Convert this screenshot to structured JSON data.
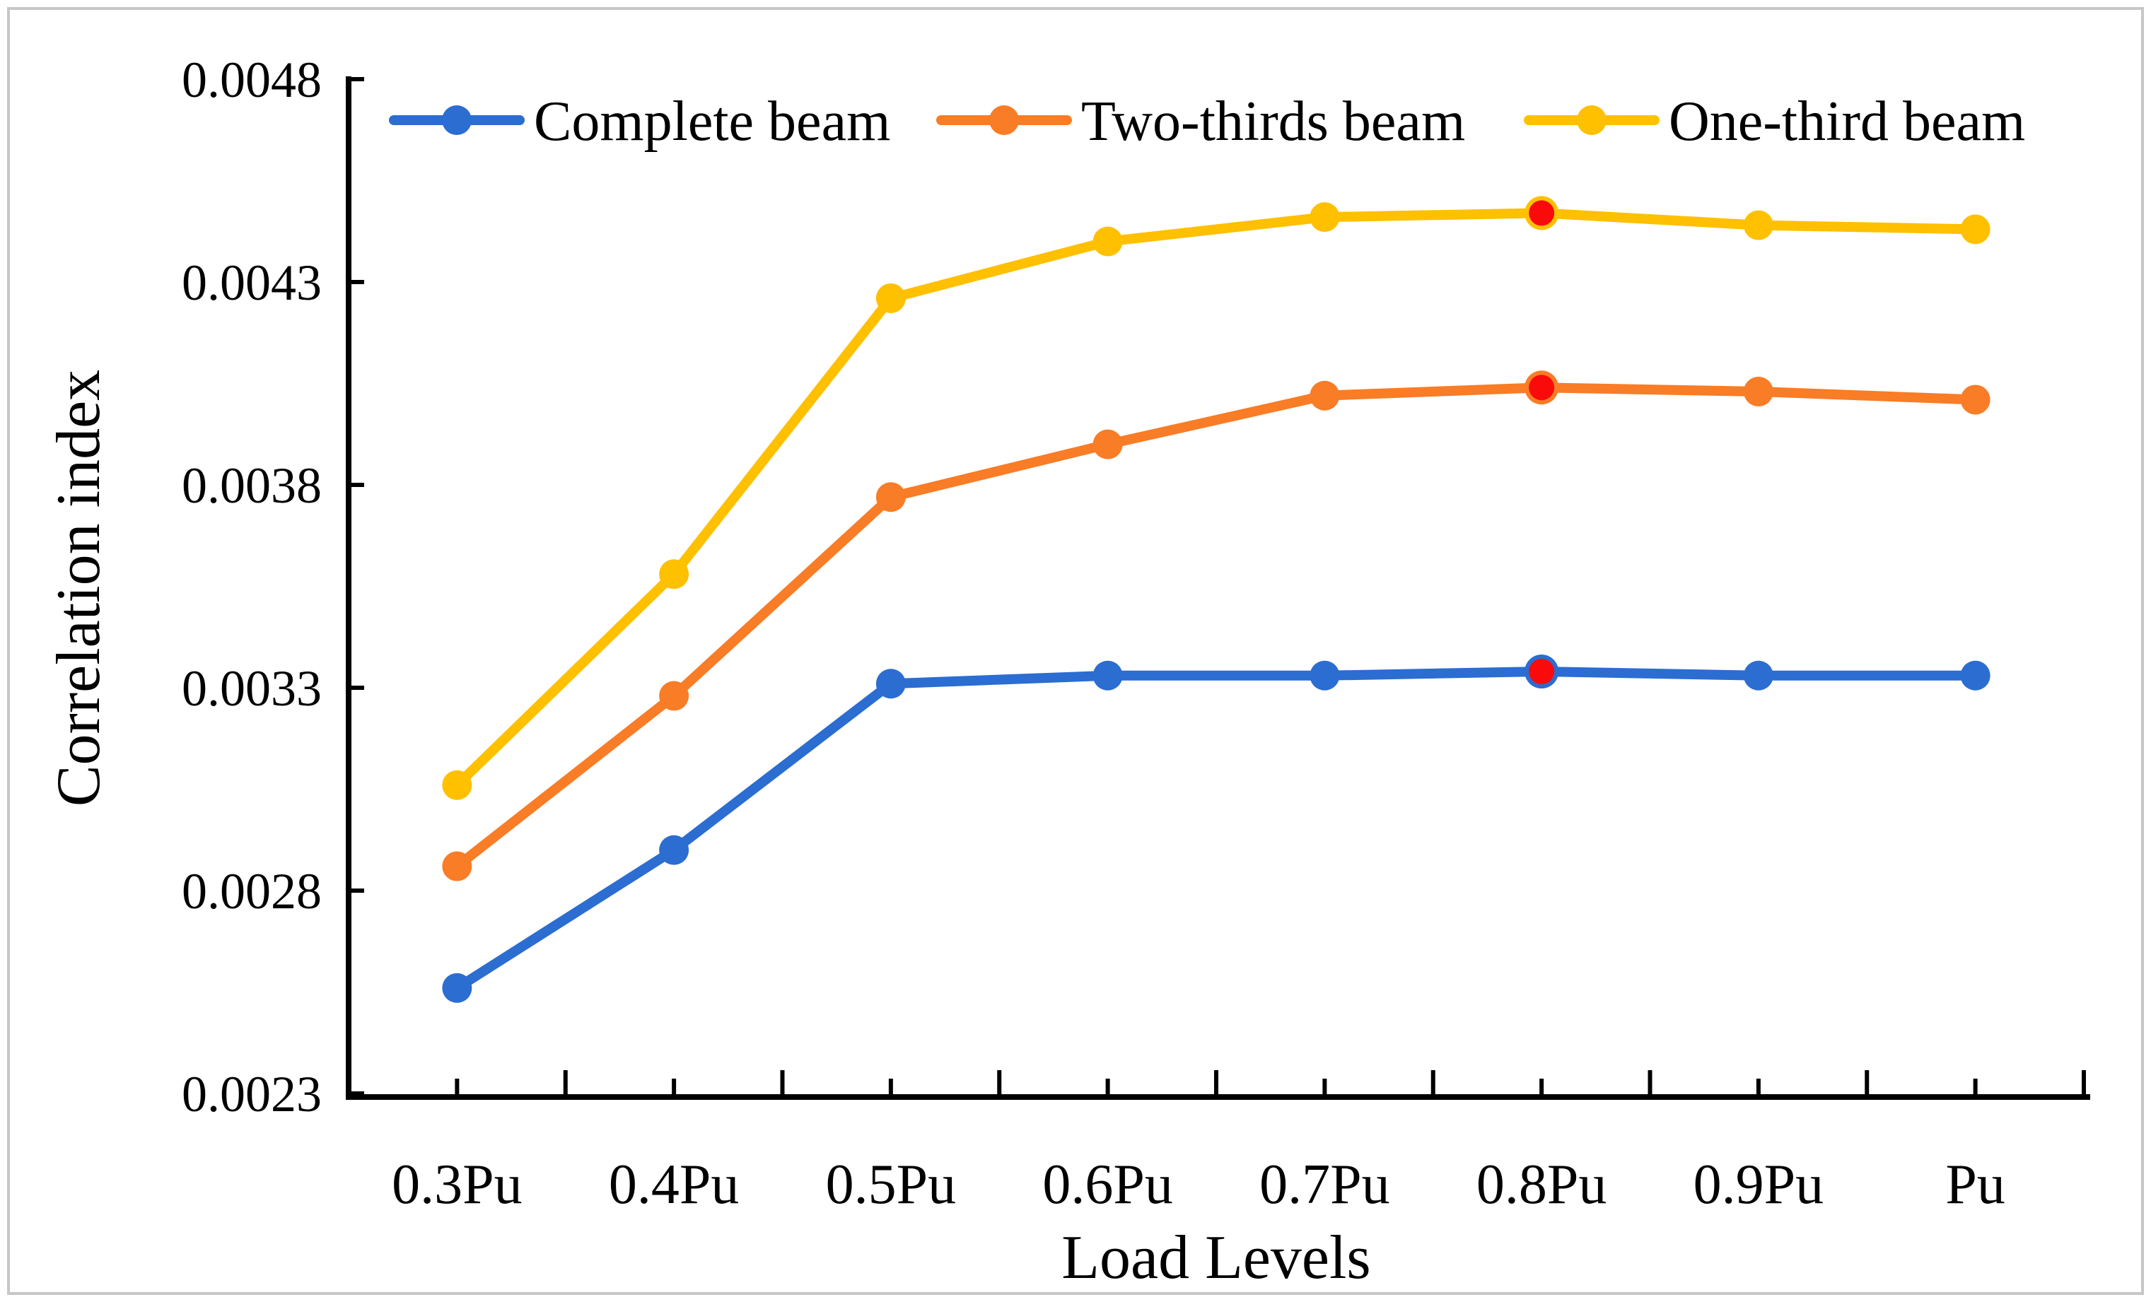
{
  "figure": {
    "background_color": "#ffffff",
    "border_color": "#c7c7c7"
  },
  "chart_data": {
    "type": "line",
    "title": "",
    "xlabel": "Load Levels",
    "ylabel": "Correlation index",
    "categories": [
      "0.3Pu",
      "0.4Pu",
      "0.5Pu",
      "0.6Pu",
      "0.7Pu",
      "0.8Pu",
      "0.9Pu",
      "Pu"
    ],
    "y_ticks": [
      "0.0048",
      "0.0043",
      "0.0038",
      "0.0033",
      "0.0028",
      "0.0023"
    ],
    "ylim": [
      0.0023,
      0.0048
    ],
    "y_tick_step": 0.0005,
    "grid": false,
    "legend_position": "top",
    "axis_color": "#000000",
    "series": [
      {
        "name": "Complete beam",
        "color": "#2b6dd1",
        "values": [
          0.00256,
          0.0029,
          0.00331,
          0.00333,
          0.00333,
          0.00334,
          0.00333,
          0.00333
        ]
      },
      {
        "name": "Two-thirds beam",
        "color": "#f97c26",
        "values": [
          0.00286,
          0.00328,
          0.00377,
          0.0039,
          0.00402,
          0.00404,
          0.00403,
          0.00401
        ]
      },
      {
        "name": "One-third beam",
        "color": "#ffc000",
        "values": [
          0.00306,
          0.00358,
          0.00426,
          0.0044,
          0.00446,
          0.00447,
          0.00444,
          0.00443
        ]
      }
    ],
    "highlight": {
      "category": "0.8Pu",
      "category_index": 5,
      "marker_color": "#f90b0b",
      "description": "red-filled markers on all three series at load level 0.8Pu"
    }
  }
}
